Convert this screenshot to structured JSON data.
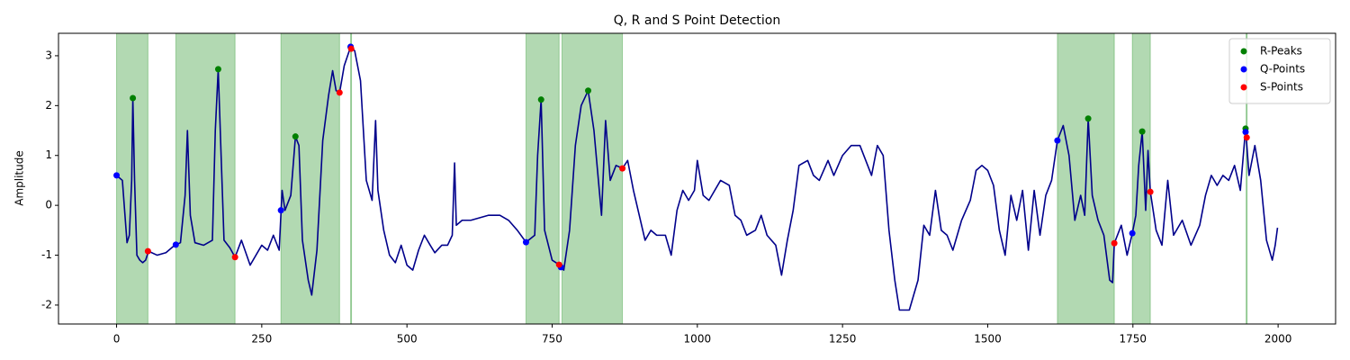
{
  "chart_data": {
    "type": "line",
    "title": "Q, R and S Point Detection",
    "ylabel": "Amplitude",
    "xlim": [
      -100,
      2099
    ],
    "ylim": [
      -2.38,
      3.45
    ],
    "xticks": [
      0,
      250,
      500,
      750,
      1000,
      1250,
      1500,
      1750,
      2000
    ],
    "yticks": [
      -2,
      -1,
      0,
      1,
      2,
      3
    ],
    "legend": "upper right",
    "spans": {
      "color": "green",
      "ranges": [
        [
          0,
          54
        ],
        [
          102,
          204
        ],
        [
          283,
          384
        ],
        [
          403,
          404
        ],
        [
          705,
          762
        ],
        [
          767,
          871
        ],
        [
          1620,
          1718
        ],
        [
          1749,
          1780
        ],
        [
          1945,
          1946
        ]
      ]
    },
    "x": [
      0,
      10,
      18,
      22,
      26,
      28,
      31,
      35,
      40,
      45,
      50,
      55,
      70,
      85,
      100,
      110,
      118,
      122,
      127,
      135,
      150,
      165,
      170,
      175,
      180,
      185,
      195,
      204,
      215,
      230,
      250,
      260,
      270,
      280,
      285,
      290,
      300,
      308,
      314,
      320,
      330,
      336,
      345,
      355,
      365,
      372,
      378,
      384,
      392,
      403,
      410,
      420,
      430,
      440,
      446,
      450,
      460,
      470,
      480,
      490,
      500,
      510,
      520,
      530,
      540,
      548,
      560,
      570,
      578,
      582,
      585,
      595,
      610,
      625,
      640,
      660,
      675,
      690,
      705,
      720,
      725,
      731,
      737,
      750,
      762,
      770,
      780,
      790,
      800,
      812,
      822,
      835,
      842,
      850,
      860,
      871,
      880,
      890,
      900,
      910,
      920,
      930,
      945,
      955,
      965,
      975,
      985,
      995,
      1000,
      1010,
      1020,
      1030,
      1040,
      1055,
      1065,
      1075,
      1085,
      1100,
      1110,
      1120,
      1135,
      1145,
      1155,
      1165,
      1175,
      1190,
      1200,
      1210,
      1225,
      1235,
      1250,
      1265,
      1280,
      1290,
      1300,
      1310,
      1320,
      1330,
      1340,
      1348,
      1365,
      1380,
      1390,
      1400,
      1410,
      1420,
      1430,
      1440,
      1455,
      1470,
      1480,
      1490,
      1500,
      1510,
      1520,
      1530,
      1540,
      1550,
      1560,
      1570,
      1580,
      1590,
      1600,
      1610,
      1620,
      1630,
      1640,
      1650,
      1660,
      1667,
      1673,
      1680,
      1690,
      1700,
      1710,
      1715,
      1718,
      1730,
      1740,
      1749,
      1755,
      1760,
      1766,
      1772,
      1776,
      1780,
      1790,
      1800,
      1810,
      1820,
      1835,
      1850,
      1865,
      1875,
      1885,
      1895,
      1905,
      1915,
      1925,
      1935,
      1944,
      1950,
      1960,
      1970,
      1980,
      1990,
      1995,
      1999
    ],
    "series": [
      {
        "color": "#00008b",
        "values": [
          0.6,
          0.5,
          -0.75,
          -0.6,
          0.5,
          2.15,
          0.5,
          -1.0,
          -1.1,
          -1.15,
          -1.1,
          -0.92,
          -1.0,
          -0.95,
          -0.8,
          -0.75,
          0.2,
          1.5,
          -0.2,
          -0.75,
          -0.8,
          -0.7,
          1.5,
          2.73,
          1.0,
          -0.7,
          -0.85,
          -1.04,
          -0.7,
          -1.2,
          -0.8,
          -0.9,
          -0.6,
          -0.9,
          0.3,
          -0.1,
          0.2,
          1.38,
          1.2,
          -0.7,
          -1.5,
          -1.8,
          -0.9,
          1.3,
          2.2,
          2.7,
          2.3,
          2.26,
          2.8,
          3.18,
          3.1,
          2.5,
          0.5,
          0.1,
          1.7,
          0.3,
          -0.5,
          -1.0,
          -1.15,
          -0.8,
          -1.2,
          -1.3,
          -0.9,
          -0.6,
          -0.8,
          -0.95,
          -0.8,
          -0.8,
          -0.6,
          0.85,
          -0.4,
          -0.3,
          -0.3,
          -0.25,
          -0.2,
          -0.2,
          -0.3,
          -0.5,
          -0.74,
          -0.6,
          1.0,
          2.12,
          -0.5,
          -1.1,
          -1.19,
          -1.3,
          -0.5,
          1.2,
          2.0,
          2.3,
          1.5,
          -0.2,
          1.7,
          0.5,
          0.8,
          0.74,
          0.9,
          0.3,
          -0.2,
          -0.7,
          -0.5,
          -0.6,
          -0.6,
          -1.0,
          -0.1,
          0.3,
          0.1,
          0.3,
          0.9,
          0.2,
          0.1,
          0.3,
          0.5,
          0.4,
          -0.2,
          -0.3,
          -0.6,
          -0.5,
          -0.2,
          -0.6,
          -0.8,
          -1.4,
          -0.7,
          -0.1,
          0.8,
          0.9,
          0.6,
          0.5,
          0.9,
          0.6,
          1.0,
          1.2,
          1.2,
          0.9,
          0.6,
          1.2,
          1.0,
          -0.5,
          -1.5,
          -2.1,
          -2.1,
          -1.5,
          -0.4,
          -0.6,
          0.3,
          -0.5,
          -0.6,
          -0.9,
          -0.3,
          0.1,
          0.7,
          0.8,
          0.7,
          0.4,
          -0.5,
          -1.0,
          0.2,
          -0.3,
          0.3,
          -0.9,
          0.3,
          -0.6,
          0.2,
          0.5,
          1.3,
          1.6,
          1.0,
          -0.3,
          0.2,
          -0.2,
          1.74,
          0.2,
          -0.3,
          -0.6,
          -1.5,
          -1.55,
          -0.76,
          -0.4,
          -1.0,
          -0.56,
          -0.2,
          0.8,
          1.48,
          -0.1,
          1.1,
          0.27,
          -0.5,
          -0.8,
          0.5,
          -0.6,
          -0.3,
          -0.8,
          -0.4,
          0.2,
          0.6,
          0.4,
          0.6,
          0.5,
          0.8,
          0.3,
          1.54,
          0.6,
          1.2,
          0.5,
          -0.7,
          -1.1,
          -0.8,
          -0.45
        ]
      }
    ],
    "points": [
      {
        "name": "R-Peaks",
        "color": "green",
        "x": [
          28,
          175,
          308,
          403,
          731,
          812,
          1673,
          1766,
          1944
        ],
        "values": [
          2.15,
          2.73,
          1.38,
          3.18,
          2.12,
          2.3,
          1.74,
          1.48,
          1.54
        ]
      },
      {
        "name": "Q-Points",
        "color": "blue",
        "x": [
          0,
          102,
          283,
          403,
          705,
          765,
          1620,
          1749,
          1944
        ],
        "values": [
          0.6,
          -0.79,
          -0.1,
          3.18,
          -0.74,
          -1.24,
          1.3,
          -0.56,
          1.47
        ]
      },
      {
        "name": "S-Points",
        "color": "red",
        "x": [
          54,
          204,
          384,
          404,
          762,
          871,
          1718,
          1780,
          1946
        ],
        "values": [
          -0.92,
          -1.04,
          2.26,
          3.14,
          -1.19,
          0.74,
          -0.76,
          0.27,
          1.36
        ]
      }
    ]
  }
}
